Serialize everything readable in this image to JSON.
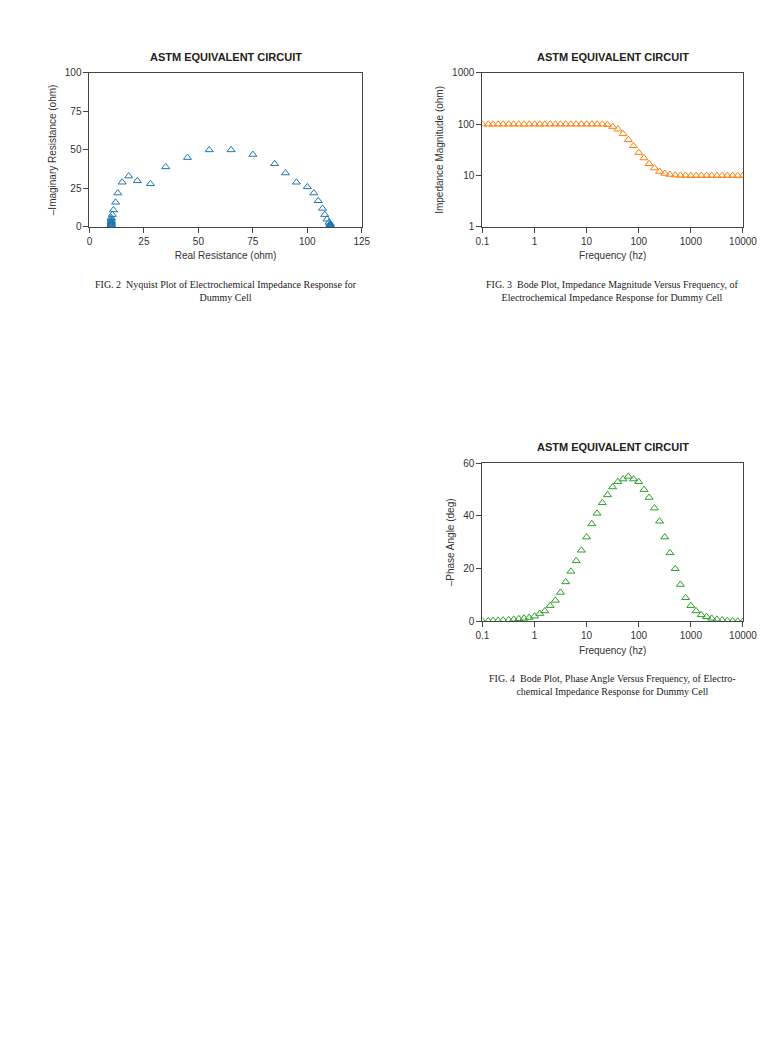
{
  "chart_data": [
    {
      "type": "scatter",
      "title": "ASTM EQUIVALENT CIRCUIT",
      "xlabel": "Real Resistance (ohm)",
      "ylabel": "–Imaginary Resistance (ohm)",
      "annotations": [
        "FIG. 2  Nyquist Plot of Electrochemical Impedance Response for\nDummy Cell"
      ],
      "x": [
        10,
        10,
        10,
        10,
        10,
        10,
        10,
        10,
        10,
        10,
        10.5,
        11,
        12,
        13,
        15,
        18,
        22,
        28,
        35,
        45,
        55,
        65,
        75,
        85,
        90,
        95,
        100,
        103,
        105,
        107,
        108,
        109,
        110,
        110.5,
        110.5,
        110.5,
        110.5,
        110.5,
        110.5,
        110.5,
        110.5,
        110.5,
        110.5,
        110.5,
        110.5,
        110.5,
        110.5,
        110.5,
        110.5,
        110.5
      ],
      "values": [
        0.5,
        1,
        1.5,
        2,
        2.5,
        3,
        3.5,
        4,
        5,
        6,
        8,
        11,
        16,
        22,
        29,
        33,
        30,
        28,
        39,
        45,
        50,
        50,
        47,
        41,
        35,
        29,
        26,
        22,
        17,
        12,
        8,
        5,
        3,
        2,
        1.5,
        1,
        0.8,
        0.6,
        0.5,
        0.4,
        0.3,
        0.2,
        0.15,
        0.1,
        0.08,
        0.06,
        0.05,
        0.04,
        0.03,
        0.02
      ],
      "xlim": [
        0,
        125
      ],
      "ylim": [
        0,
        100
      ],
      "xticks": [
        0,
        25,
        50,
        75,
        100,
        125
      ],
      "yticks": [
        0,
        25,
        50,
        75,
        100
      ],
      "marker": "triangle-up-open",
      "grid": false
    },
    {
      "type": "scatter",
      "title": "ASTM EQUIVALENT CIRCUIT",
      "xlabel": "Frequency (hz)",
      "ylabel": "Impedance Magnitude (ohm)",
      "annotations": [
        "FIG. 3  Bode Plot, Impedance Magnitude Versus Frequency, of\nElectrochemical Impedance Response for Dummy Cell"
      ],
      "x": [
        0.1,
        0.13,
        0.16,
        0.2,
        0.25,
        0.32,
        0.4,
        0.5,
        0.63,
        0.79,
        1.0,
        1.26,
        1.58,
        2.0,
        2.51,
        3.16,
        3.98,
        5.0,
        6.31,
        7.94,
        10.0,
        12.6,
        15.8,
        20.0,
        25.1,
        31.6,
        39.8,
        50.0,
        63.1,
        79.4,
        100,
        126,
        158,
        200,
        251,
        316,
        398,
        500,
        631,
        794,
        1000,
        1260,
        1580,
        2000,
        2510,
        3160,
        3980,
        5000,
        6310,
        7940,
        10000
      ],
      "values": [
        100,
        100,
        100,
        100,
        100,
        100,
        100,
        100,
        100,
        100,
        100,
        100,
        100,
        100,
        100,
        100,
        100,
        100,
        100,
        100,
        100,
        100,
        100,
        100,
        98,
        90,
        80,
        65,
        50,
        38,
        28,
        22,
        17,
        14,
        12,
        11,
        10.5,
        10.2,
        10.1,
        10.05,
        10.02,
        10.01,
        10.005,
        10.002,
        10.001,
        10.001,
        10.001,
        10.001,
        10.001,
        10.001,
        10.001
      ],
      "xlim": [
        0.1,
        10000
      ],
      "ylim": [
        1,
        1000
      ],
      "xticks": [
        0.1,
        1,
        10,
        100,
        1000,
        10000
      ],
      "yticks": [
        1,
        10,
        100,
        1000
      ],
      "log": true,
      "marker": "triangle-up-open",
      "grid": false
    },
    {
      "type": "scatter",
      "title": "ASTM EQUIVALENT CIRCUIT",
      "xlabel": "Frequency (hz)",
      "ylabel": "–Phase Angle (deg)",
      "annotations": [
        "FIG. 4  Bode Plot, Phase Angle Versus Frequency, of Electro-\nchemical Impedance Response for Dummy Cell"
      ],
      "x": [
        0.1,
        0.13,
        0.16,
        0.2,
        0.25,
        0.32,
        0.4,
        0.5,
        0.63,
        0.79,
        1.0,
        1.26,
        1.58,
        2.0,
        2.51,
        3.16,
        3.98,
        5.0,
        6.31,
        7.94,
        10.0,
        12.6,
        15.8,
        20.0,
        25.1,
        31.6,
        39.8,
        50.0,
        63.1,
        79.4,
        100,
        126,
        158,
        200,
        251,
        316,
        398,
        500,
        631,
        794,
        1000,
        1260,
        1580,
        2000,
        2510,
        3160,
        3980,
        5000,
        6310,
        7940,
        10000
      ],
      "values": [
        0.1,
        0.2,
        0.3,
        0.4,
        0.5,
        0.6,
        0.8,
        1.0,
        1.2,
        1.5,
        2.0,
        3.0,
        4.0,
        6.0,
        8.0,
        11,
        15,
        19,
        23,
        27,
        32,
        37,
        41,
        45,
        48,
        51,
        53,
        54,
        55,
        54,
        53,
        50,
        47,
        43,
        38,
        32,
        26,
        20,
        14,
        9,
        6,
        4,
        2.5,
        1.8,
        1.2,
        0.8,
        0.5,
        0.3,
        0.2,
        0.1,
        0.05
      ],
      "xlim": [
        0.1,
        10000
      ],
      "ylim": [
        0,
        60
      ],
      "xticks": [
        0.1,
        1,
        10,
        100,
        1000,
        10000
      ],
      "yticks": [
        0,
        20,
        40,
        60
      ],
      "log": "x",
      "marker": "triangle-up-open",
      "grid": false
    }
  ]
}
